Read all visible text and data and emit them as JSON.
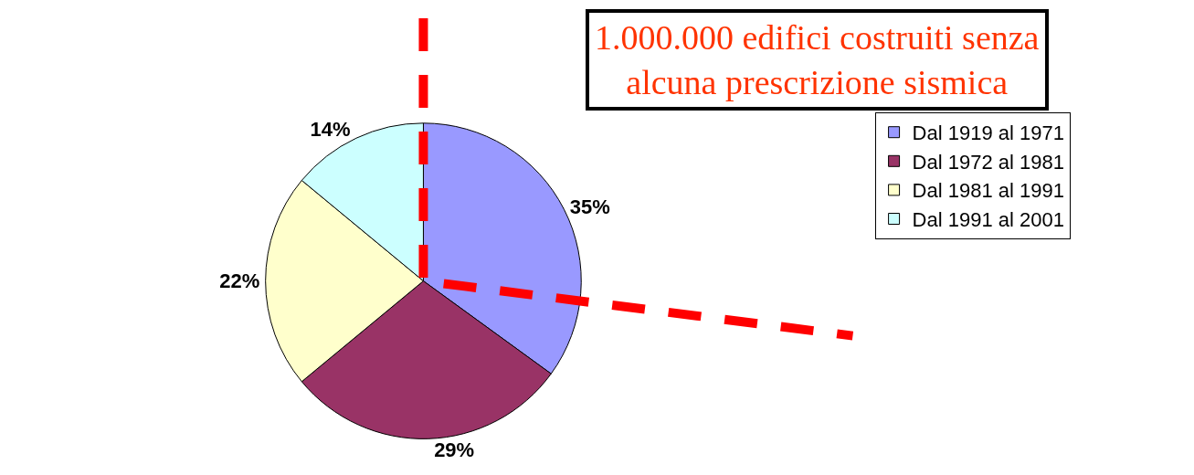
{
  "chart_data": {
    "type": "pie",
    "categories": [
      "Dal 1919 al 1971",
      "Dal 1972 al 1981",
      "Dal 1981 al 1991",
      "Dal 1991 al 2001"
    ],
    "values": [
      35,
      29,
      22,
      14
    ],
    "colors": [
      "#9999ff",
      "#993366",
      "#ffffcc",
      "#ccffff"
    ],
    "value_labels": [
      "35%",
      "29%",
      "22%",
      "14%"
    ],
    "legend": "right",
    "annotations": [
      "1.000.000 edifici costruiti senza\nalcuna prescrizione sismica"
    ]
  }
}
